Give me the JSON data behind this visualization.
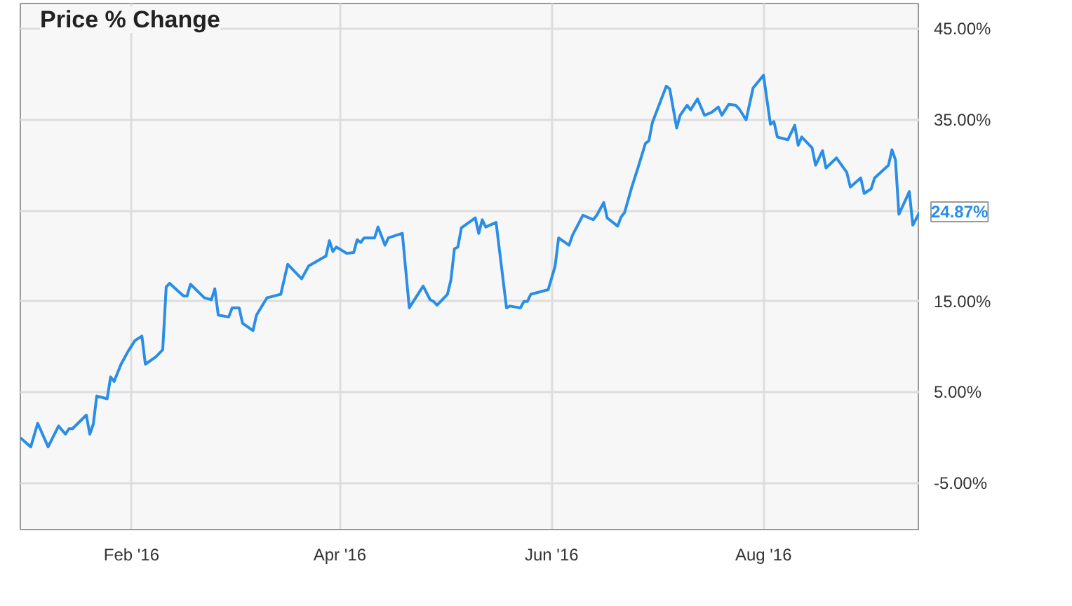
{
  "chart_data": {
    "type": "line",
    "title": "Price % Change",
    "x": [
      "2015-12-31",
      "2016-01-03",
      "2016-01-05",
      "2016-01-08",
      "2016-01-11",
      "2016-01-13",
      "2016-01-14",
      "2016-01-15",
      "2016-01-19",
      "2016-01-20",
      "2016-01-21",
      "2016-01-22",
      "2016-01-25",
      "2016-01-26",
      "2016-01-27",
      "2016-01-29",
      "2016-01-31",
      "2016-02-02",
      "2016-02-04",
      "2016-02-05",
      "2016-02-08",
      "2016-02-10",
      "2016-02-11",
      "2016-02-12",
      "2016-02-16",
      "2016-02-17",
      "2016-02-18",
      "2016-02-22",
      "2016-02-24",
      "2016-02-25",
      "2016-02-26",
      "2016-02-29",
      "2016-03-01",
      "2016-03-03",
      "2016-03-04",
      "2016-03-07",
      "2016-03-08",
      "2016-03-11",
      "2016-03-15",
      "2016-03-17",
      "2016-03-21",
      "2016-03-23",
      "2016-03-28",
      "2016-03-29",
      "2016-03-30",
      "2016-03-31",
      "2016-04-03",
      "2016-04-05",
      "2016-04-06",
      "2016-04-07",
      "2016-04-08",
      "2016-04-11",
      "2016-04-12",
      "2016-04-14",
      "2016-04-15",
      "2016-04-19",
      "2016-04-21",
      "2016-04-25",
      "2016-04-27",
      "2016-04-28",
      "2016-04-29",
      "2016-05-02",
      "2016-05-03",
      "2016-05-04",
      "2016-05-05",
      "2016-05-06",
      "2016-05-10",
      "2016-05-11",
      "2016-05-12",
      "2016-05-13",
      "2016-05-16",
      "2016-05-19",
      "2016-05-20",
      "2016-05-23",
      "2016-05-24",
      "2016-05-25",
      "2016-05-26",
      "2016-05-31",
      "2016-06-02",
      "2016-06-03",
      "2016-06-06",
      "2016-06-07",
      "2016-06-10",
      "2016-06-13",
      "2016-06-14",
      "2016-06-16",
      "2016-06-17",
      "2016-06-20",
      "2016-06-21",
      "2016-06-22",
      "2016-06-24",
      "2016-06-26",
      "2016-06-28",
      "2016-06-29",
      "2016-06-30",
      "2016-07-04",
      "2016-07-05",
      "2016-07-07",
      "2016-07-08",
      "2016-07-10",
      "2016-07-11",
      "2016-07-13",
      "2016-07-15",
      "2016-07-17",
      "2016-07-19",
      "2016-07-20",
      "2016-07-22",
      "2016-07-24",
      "2016-07-25",
      "2016-07-27",
      "2016-07-29",
      "2016-08-01",
      "2016-08-03",
      "2016-08-04",
      "2016-08-05",
      "2016-08-08",
      "2016-08-10",
      "2016-08-11",
      "2016-08-12",
      "2016-08-15",
      "2016-08-16",
      "2016-08-18",
      "2016-08-19",
      "2016-08-22",
      "2016-08-25",
      "2016-08-26",
      "2016-08-29",
      "2016-08-30",
      "2016-09-01",
      "2016-09-02",
      "2016-09-06",
      "2016-09-07",
      "2016-09-08",
      "2016-09-09",
      "2016-09-12",
      "2016-09-13",
      "2016-09-15"
    ],
    "series": [
      {
        "color": "#2a8ee6",
        "values": [
          0,
          -1.0,
          1.6,
          -1.0,
          1.3,
          0.4,
          1.0,
          1.0,
          2.5,
          0.4,
          1.5,
          4.6,
          4.3,
          6.7,
          6.2,
          8.1,
          9.5,
          10.7,
          11.2,
          8.1,
          8.9,
          9.7,
          16.6,
          17.0,
          15.6,
          15.6,
          16.9,
          15.4,
          15.2,
          16.4,
          13.5,
          13.3,
          14.3,
          14.3,
          12.6,
          11.8,
          13.5,
          15.4,
          15.8,
          19.1,
          17.5,
          18.9,
          20.0,
          21.7,
          20.5,
          21.0,
          20.3,
          20.4,
          21.8,
          21.5,
          22.0,
          22.0,
          23.2,
          21.2,
          22.0,
          22.5,
          14.3,
          16.7,
          15.2,
          15.0,
          14.6,
          15.8,
          17.4,
          20.8,
          21.0,
          23.1,
          24.2,
          22.5,
          24.0,
          23.2,
          23.7,
          14.3,
          14.5,
          14.3,
          15.0,
          15.0,
          15.8,
          16.3,
          18.9,
          22.0,
          21.2,
          22.3,
          24.5,
          24.0,
          24.5,
          25.9,
          24.2,
          23.3,
          24.3,
          24.8,
          27.5,
          29.9,
          32.4,
          32.7,
          34.7,
          38.7,
          38.4,
          34.1,
          35.5,
          36.6,
          36.1,
          37.3,
          35.5,
          35.8,
          36.4,
          35.5,
          36.7,
          36.6,
          36.2,
          35.0,
          38.5,
          39.9,
          34.5,
          34.8,
          33.1,
          32.8,
          34.4,
          32.2,
          33.1,
          31.9,
          30.0,
          31.6,
          29.7,
          30.8,
          29.2,
          27.6,
          28.6,
          26.9,
          27.4,
          28.6,
          30.0,
          31.7,
          30.6,
          24.6,
          27.1,
          23.4,
          24.87
        ]
      }
    ],
    "annotations": [
      {
        "text": "24.87%",
        "x": "2016-09-15",
        "y": 24.87
      }
    ],
    "xlim": [
      "2015-12-31",
      "2016-09-15"
    ],
    "xticks": [
      {
        "value": "2016-02-01",
        "label": "Feb '16"
      },
      {
        "value": "2016-04-01",
        "label": "Apr '16"
      },
      {
        "value": "2016-06-01",
        "label": "Jun '16"
      },
      {
        "value": "2016-08-01",
        "label": "Aug '16"
      }
    ],
    "ylim": [
      -10.1,
      47.8
    ],
    "yticks": [
      {
        "value": -5,
        "label": "-5.00%"
      },
      {
        "value": 5,
        "label": "5.00%"
      },
      {
        "value": 15,
        "label": "15.00%"
      },
      {
        "value": 25,
        "label": null
      },
      {
        "value": 35,
        "label": "35.00%"
      },
      {
        "value": 45,
        "label": "45.00%"
      }
    ],
    "grid": true,
    "marker": "none",
    "line_style": "solid"
  }
}
